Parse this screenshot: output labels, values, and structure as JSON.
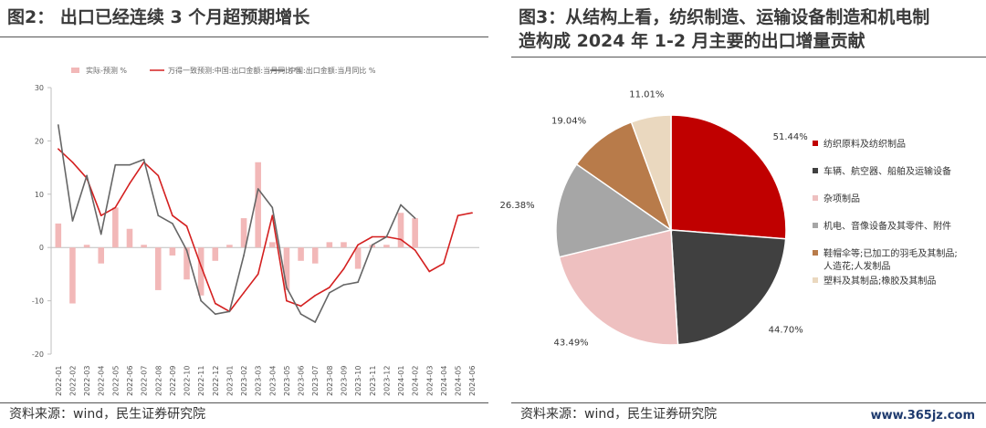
{
  "left": {
    "title": "图2：  出口已经连续 3 个月超预期增长",
    "source": "资料来源：wind，民生证券研究院"
  },
  "right": {
    "title": "图3：从结构上看，纺织制造、运输设备制造和机电制\n造构成 2024 年 1-2 月主要的出口增量贡献",
    "source": "资料来源：wind，民生证券研究院"
  },
  "watermark": "www.365jz.com",
  "colors": {
    "bar": "#f2b8b8",
    "red_line": "#d42020",
    "gray_line": "#666666",
    "pie": [
      "#c00000",
      "#404040",
      "#eec0c0",
      "#a6a6a6",
      "#b87b4a",
      "#ead8bf"
    ]
  },
  "chart_data": [
    {
      "type": "bar+line",
      "categories": [
        "2022-01",
        "2022-02",
        "2022-03",
        "2022-04",
        "2022-05",
        "2022-06",
        "2022-07",
        "2022-08",
        "2022-09",
        "2022-10",
        "2022-11",
        "2022-12",
        "2023-01",
        "2023-02",
        "2023-03",
        "2023-04",
        "2023-05",
        "2023-06",
        "2023-07",
        "2023-08",
        "2023-09",
        "2023-10",
        "2023-11",
        "2023-12",
        "2024-01",
        "2024-02",
        "2024-03",
        "2024-04",
        "2024-05",
        "2024-06"
      ],
      "ylim": [
        -20,
        30
      ],
      "yticks": [
        -20,
        -10,
        0,
        10,
        20,
        30
      ],
      "grid": false,
      "legend_position": "top",
      "series": [
        {
          "name": "实际-预测 %",
          "kind": "bar",
          "values": [
            4.5,
            -10.5,
            0.5,
            -3.0,
            7.5,
            3.5,
            0.5,
            -8.0,
            -1.5,
            -6.0,
            -9.0,
            -2.5,
            0.5,
            5.5,
            16.0,
            1.0,
            -8.0,
            -2.5,
            -3.0,
            1.0,
            1.0,
            -4.0,
            0.5,
            0.5,
            6.5,
            5.5,
            null,
            null,
            null,
            null
          ]
        },
        {
          "name": "万得一致预测:中国:出口金额:当月同比 %",
          "kind": "line",
          "values": [
            18.5,
            16.0,
            13.0,
            6.0,
            7.5,
            12.0,
            16.0,
            13.5,
            6.0,
            4.0,
            -3.5,
            -10.5,
            -12.0,
            -8.5,
            -5.0,
            6.0,
            -10.0,
            -11.0,
            -9.0,
            -7.5,
            -4.0,
            0.5,
            2.0,
            2.0,
            1.5,
            -0.5,
            -4.5,
            -3.0,
            6.0,
            6.5
          ]
        },
        {
          "name": "中国:出口金额:当月同比 %",
          "kind": "line",
          "values": [
            23.0,
            5.0,
            13.5,
            2.5,
            15.5,
            15.5,
            16.5,
            6.0,
            4.5,
            -0.5,
            -10.0,
            -12.5,
            -12.0,
            -1.5,
            11.0,
            7.5,
            -7.5,
            -12.5,
            -14.0,
            -8.5,
            -7.0,
            -6.5,
            0.5,
            2.0,
            8.0,
            5.5,
            null,
            null,
            null,
            null
          ]
        }
      ]
    },
    {
      "type": "pie",
      "labels": [
        "纺织原料及纺织制品",
        "车辆、航空器、船舶及运输设备",
        "杂项制品",
        "机电、音像设备及其零件、附件",
        "鞋帽伞等;已加工的羽毛及其制品;\n人造花;人发制品",
        "塑料及其制品;橡胶及其制品"
      ],
      "values": [
        51.44,
        44.7,
        43.49,
        26.38,
        19.04,
        11.01
      ],
      "value_labels": [
        "51.44%",
        "44.70%",
        "43.49%",
        "26.38%",
        "19.04%",
        "11.01%"
      ],
      "legend_position": "right"
    }
  ]
}
